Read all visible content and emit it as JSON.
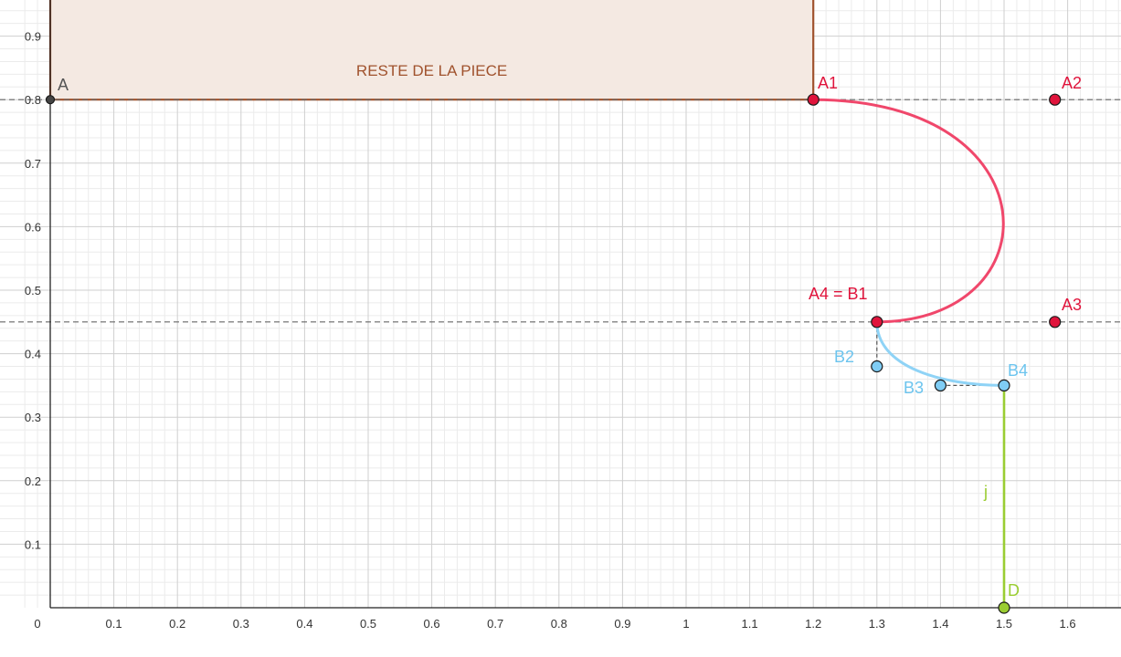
{
  "x_axis": {
    "ticks": [
      0,
      0.1,
      0.2,
      0.3,
      0.4,
      0.5,
      0.6,
      0.7,
      0.8,
      0.9,
      1,
      1.1,
      1.2,
      1.3,
      1.4,
      1.5,
      1.6
    ],
    "tick_labels": [
      "0",
      "0.1",
      "0.2",
      "0.3",
      "0.4",
      "0.5",
      "0.6",
      "0.7",
      "0.8",
      "0.9",
      "1",
      "1.1",
      "1.2",
      "1.3",
      "1.4",
      "1.5",
      "1.6"
    ]
  },
  "y_axis": {
    "ticks": [
      0.1,
      0.2,
      0.3,
      0.4,
      0.5,
      0.6,
      0.7,
      0.8,
      0.9
    ],
    "tick_labels": [
      "0.1",
      "0.2",
      "0.3",
      "0.4",
      "0.5",
      "0.6",
      "0.7",
      "0.8",
      "0.9"
    ]
  },
  "region": {
    "label": "RESTE DE LA PIECE",
    "x_min": 0,
    "x_max": 1.2,
    "y_min": 0.8,
    "fill": "#f4e9e2",
    "stroke": "#a0522d",
    "label_color": "#a0522d"
  },
  "guide_lines": [
    {
      "y": 0.8,
      "color": "#666666"
    },
    {
      "y": 0.45,
      "color": "#666666"
    }
  ],
  "points": [
    {
      "name": "A",
      "label": "A",
      "x": 0,
      "y": 0.8,
      "color": "#444444",
      "label_color": "#555555"
    },
    {
      "name": "A1",
      "label": "A1",
      "x": 1.2,
      "y": 0.8,
      "color": "#e0143c",
      "label_color": "#e0143c"
    },
    {
      "name": "A2",
      "label": "A2",
      "x": 1.58,
      "y": 0.8,
      "color": "#e0143c",
      "label_color": "#e0143c"
    },
    {
      "name": "A3",
      "label": "A3",
      "x": 1.58,
      "y": 0.45,
      "color": "#e0143c",
      "label_color": "#e0143c"
    },
    {
      "name": "A4",
      "label": "A4 = B1",
      "x": 1.3,
      "y": 0.45,
      "color": "#e0143c",
      "label_color": "#e0143c"
    },
    {
      "name": "B2",
      "label": "B2",
      "x": 1.3,
      "y": 0.38,
      "color": "#7fcdf5",
      "label_color": "#6cc4ee"
    },
    {
      "name": "B3",
      "label": "B3",
      "x": 1.4,
      "y": 0.35,
      "color": "#7fcdf5",
      "label_color": "#6cc4ee"
    },
    {
      "name": "B4",
      "label": "B4",
      "x": 1.5,
      "y": 0.35,
      "color": "#7fcdf5",
      "label_color": "#6cc4ee"
    },
    {
      "name": "D",
      "label": "D",
      "x": 1.5,
      "y": 0,
      "color": "#9acd32",
      "label_color": "#9acd32"
    }
  ],
  "curves": [
    {
      "name": "curve-a",
      "from": "A1",
      "c1": "A2",
      "c2": "A3",
      "to": "A4",
      "color": "#f0476b"
    },
    {
      "name": "curve-b",
      "from": "A4",
      "c1": "B2",
      "c2": "B3",
      "to": "B4",
      "color": "#8fd3f6"
    }
  ],
  "handles": [
    {
      "from": "A4",
      "to": "B2"
    },
    {
      "from": "B3",
      "to": "B4"
    }
  ],
  "segment_j": {
    "label": "j",
    "from": "B4",
    "to": "D",
    "color": "#9acd32"
  }
}
